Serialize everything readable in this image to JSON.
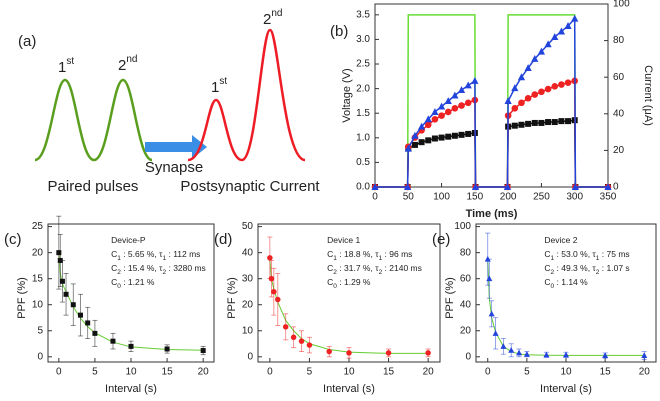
{
  "diagram": {
    "label": "(a)",
    "input_peaks": [
      {
        "num": "1",
        "sup": "st"
      },
      {
        "num": "2",
        "sup": "nd"
      }
    ],
    "arrow_label": "Synapse",
    "input_caption": "Paired pulses",
    "output_peaks": [
      {
        "num": "1",
        "sup": "st"
      },
      {
        "num": "2",
        "sup": "nd"
      }
    ],
    "output_caption": "Postsynaptic Current",
    "input_color": "#5a9e1e",
    "output_color": "#ee1c25",
    "arrow_color": "#3a8ee6"
  },
  "chart_data": [
    {
      "type": "line",
      "label": "(b)",
      "xlabel": "Time (ms)",
      "ylabel": "Voltage (V)",
      "y2label": "Current (μA)",
      "ylabel_color": "#66cc33",
      "xlim": [
        0,
        350
      ],
      "xticks": [
        0,
        50,
        100,
        150,
        200,
        250,
        300,
        350
      ],
      "ylim": [
        0,
        3.72
      ],
      "yticks": [
        {
          "value": 0,
          "label": "0.0"
        },
        0.5,
        {
          "value": 1,
          "label": "1.0"
        },
        1.5,
        {
          "value": 2,
          "label": "2.0"
        },
        2.5,
        {
          "value": 3,
          "label": "3.0"
        },
        3.5
      ],
      "y2lim": [
        0,
        100
      ],
      "y2ticks": [
        0,
        20,
        40,
        60,
        80,
        100
      ],
      "x": [
        0,
        49,
        50,
        60,
        70,
        80,
        90,
        100,
        110,
        120,
        130,
        140,
        150,
        151,
        199,
        200,
        210,
        220,
        230,
        240,
        250,
        260,
        270,
        280,
        290,
        300,
        301,
        350
      ],
      "series": [
        {
          "color": "#66dd33",
          "axis": "y",
          "marker": "none",
          "values": [
            0,
            0,
            3.5,
            3.5,
            3.5,
            3.5,
            3.5,
            3.5,
            3.5,
            3.5,
            3.5,
            3.5,
            3.5,
            0,
            0,
            3.5,
            3.5,
            3.5,
            3.5,
            3.5,
            3.5,
            3.5,
            3.5,
            3.5,
            3.5,
            3.5,
            0,
            0
          ]
        },
        {
          "color": "#111111",
          "axis": "y2",
          "marker": "square",
          "values": [
            0,
            0,
            21,
            23,
            24.5,
            25.5,
            26.5,
            27,
            27.5,
            28,
            28.5,
            29,
            29.5,
            0,
            0,
            33,
            33.5,
            34,
            34.5,
            35,
            35,
            35.5,
            35.5,
            36,
            36,
            36.5,
            0,
            0
          ]
        },
        {
          "color": "#ee2222",
          "axis": "y2",
          "marker": "circle",
          "values": [
            0,
            0,
            22,
            27,
            31,
            34,
            37,
            39,
            41,
            43,
            44.5,
            46,
            47.5,
            0,
            0,
            39,
            43,
            46,
            48.5,
            50.5,
            52,
            53.5,
            55,
            56,
            57,
            58,
            0,
            0
          ]
        },
        {
          "color": "#2244dd",
          "axis": "y2",
          "marker": "triangle",
          "values": [
            0,
            0,
            21,
            28,
            33,
            37,
            41,
            44,
            47,
            50,
            53,
            55.5,
            58,
            0,
            0,
            47,
            54,
            60,
            65,
            70,
            74,
            78,
            82,
            85,
            88,
            92,
            0,
            0
          ]
        }
      ]
    },
    {
      "type": "scatter",
      "label": "(c)",
      "xlabel": "Interval (s)",
      "ylabel": "PPF (%)",
      "xlim": [
        -1.5,
        21.5
      ],
      "xticks": [
        0,
        5,
        10,
        15,
        20
      ],
      "ylim": [
        -1,
        25.5
      ],
      "yticks": [
        0,
        5,
        10,
        15,
        20,
        25
      ],
      "annotation": [
        [
          "Device-P"
        ],
        [
          "C",
          {
            "sub": "1"
          },
          " : 5.65 %, τ",
          {
            "sub": "1"
          },
          " : 112 ms"
        ],
        [
          "C",
          {
            "sub": "2"
          },
          " : 15.4 %, τ",
          {
            "sub": "2"
          },
          " : 3280 ms"
        ],
        [
          "C",
          {
            "sub": "0"
          },
          " : 1.21 %"
        ]
      ],
      "x": [
        0,
        0.2,
        0.5,
        1,
        2,
        3,
        4,
        5,
        7.5,
        10,
        15,
        20
      ],
      "series": [
        {
          "color": "#111111",
          "marker": "square",
          "values": [
            20,
            18.5,
            14.5,
            12,
            10,
            8,
            6.5,
            4.5,
            3,
            2,
            1.5,
            1.2
          ],
          "errors": [
            7,
            5,
            4,
            4,
            4,
            4,
            3,
            2.5,
            1.5,
            1,
            0.8,
            0.8
          ]
        }
      ],
      "fit": {
        "color": "#66cc33",
        "x": [
          0,
          0.2,
          0.5,
          1,
          2,
          3,
          4,
          5,
          7.5,
          10,
          15,
          20
        ],
        "values": [
          20.5,
          16,
          14,
          12.5,
          9.6,
          7.4,
          5.8,
          4.6,
          2.8,
          1.9,
          1.4,
          1.25
        ]
      }
    },
    {
      "type": "scatter",
      "label": "(d)",
      "xlabel": "Interval (s)",
      "ylabel": "PPF (%)",
      "xlim": [
        -1.5,
        21.5
      ],
      "xticks": [
        0,
        5,
        10,
        15,
        20
      ],
      "ylim": [
        -2,
        51
      ],
      "yticks": [
        0,
        10,
        20,
        30,
        40,
        50
      ],
      "annotation": [
        [
          "Device 1"
        ],
        [
          "C",
          {
            "sub": "1"
          },
          " : 18.8 %, τ",
          {
            "sub": "1"
          },
          " : 96 ms"
        ],
        [
          "C",
          {
            "sub": "2"
          },
          " : 31.7 %, τ",
          {
            "sub": "2"
          },
          " : 2140 ms"
        ],
        [
          "C",
          {
            "sub": "0"
          },
          " : 1.29 %"
        ]
      ],
      "x": [
        0,
        0.2,
        0.5,
        1,
        2,
        3,
        4,
        5,
        7.5,
        10,
        15,
        20
      ],
      "series": [
        {
          "color": "#ee2222",
          "marker": "circle",
          "values": [
            38,
            30,
            25,
            22,
            11.5,
            7.5,
            6,
            4.5,
            2,
            1.5,
            1.5,
            1.5
          ],
          "errors": [
            8,
            7,
            9,
            10,
            5,
            4,
            4,
            3,
            2,
            2,
            1.5,
            1.5
          ]
        }
      ],
      "fit": {
        "color": "#66cc33",
        "x": [
          0,
          0.2,
          0.5,
          1,
          2,
          3,
          4,
          5,
          7.5,
          10,
          15,
          20
        ],
        "values": [
          37,
          30,
          26,
          21,
          14,
          10,
          7,
          5,
          2.8,
          1.8,
          1.3,
          1.3
        ]
      }
    },
    {
      "type": "scatter",
      "label": "(e)",
      "xlabel": "Interval (s)",
      "ylabel": "PPF (%)",
      "xlim": [
        -1.5,
        21.5
      ],
      "xticks": [
        0,
        5,
        10,
        15,
        20
      ],
      "ylim": [
        -4,
        102
      ],
      "yticks": [
        0,
        20,
        40,
        60,
        80,
        100
      ],
      "annotation": [
        [
          "Device 2"
        ],
        [
          "C",
          {
            "sub": "1"
          },
          " : 53.0 %, τ",
          {
            "sub": "1"
          },
          " : 75 ms"
        ],
        [
          "C",
          {
            "sub": "2"
          },
          " : 49.3 %, τ",
          {
            "sub": "2"
          },
          " : 1.07 s"
        ],
        [
          "C",
          {
            "sub": "0"
          },
          " : 1.14 %"
        ]
      ],
      "x": [
        0,
        0.2,
        0.5,
        1,
        2,
        3,
        4,
        5,
        7.5,
        10,
        15,
        20
      ],
      "series": [
        {
          "color": "#2244dd",
          "marker": "triangle",
          "values": [
            75,
            60,
            33,
            18,
            8,
            5,
            3,
            2,
            1.5,
            1.5,
            1,
            1
          ],
          "errors": [
            20,
            15,
            10,
            12,
            6,
            5,
            3,
            2,
            2,
            2,
            2,
            3
          ]
        }
      ],
      "fit": {
        "color": "#66cc33",
        "x": [
          0,
          0.2,
          0.5,
          1,
          2,
          3,
          4,
          5,
          7.5,
          10,
          15,
          20
        ],
        "values": [
          75,
          45,
          30,
          19,
          8,
          4,
          2.2,
          1.6,
          1.2,
          1.1,
          1.1,
          1.1
        ]
      }
    }
  ]
}
